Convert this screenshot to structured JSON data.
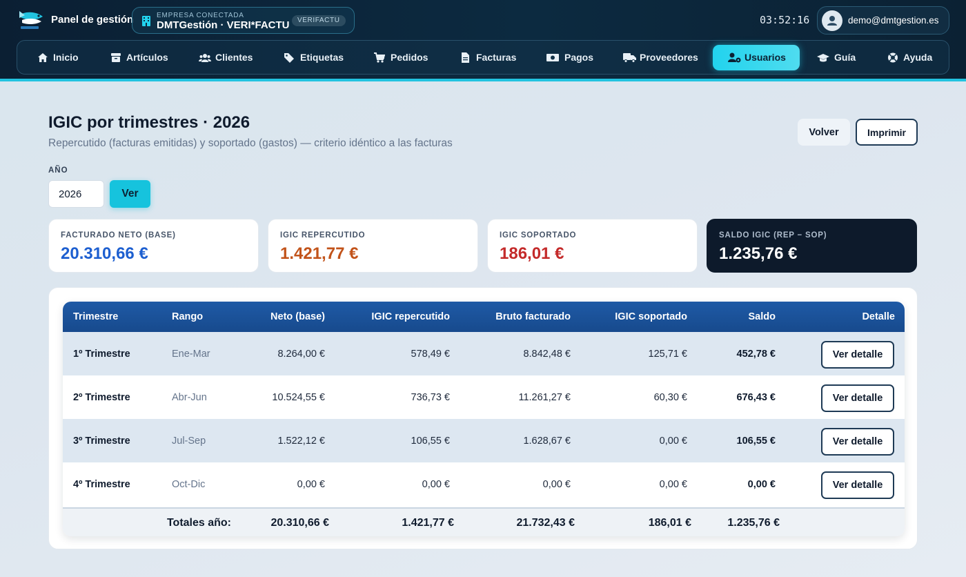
{
  "header": {
    "brand": "Panel de gestión",
    "company_eyebrow": "EMPRESA CONECTADA",
    "company_name": "DMTGestión · VERI*FACTU",
    "company_badge": "VERIFACTU",
    "clock": "03:52:16",
    "user_email": "demo@dmtgestion.es"
  },
  "nav": [
    {
      "label": "Inicio",
      "icon": "home-icon"
    },
    {
      "label": "Artículos",
      "icon": "box-icon"
    },
    {
      "label": "Clientes",
      "icon": "users-icon"
    },
    {
      "label": "Etiquetas",
      "icon": "tags-icon"
    },
    {
      "label": "Pedidos",
      "icon": "cart-icon"
    },
    {
      "label": "Facturas",
      "icon": "invoice-icon"
    },
    {
      "label": "Pagos",
      "icon": "money-icon"
    },
    {
      "label": "Proveedores",
      "icon": "truck-icon"
    },
    {
      "label": "Usuarios",
      "icon": "user-gear-icon",
      "active": true
    },
    {
      "label": "Guía",
      "icon": "graduation-cap-icon"
    },
    {
      "label": "Ayuda",
      "icon": "lifebuoy-icon"
    }
  ],
  "page": {
    "title": "IGIC por trimestres · 2026",
    "subtitle": "Repercutido (facturas emitidas) y soportado (gastos) — criterio idéntico a las facturas",
    "back_label": "Volver",
    "print_label": "Imprimir",
    "year_label": "AÑO",
    "year_value": "2026",
    "view_label": "Ver"
  },
  "kpis": [
    {
      "label": "FACTURADO NETO (BASE)",
      "value": "20.310,66 €",
      "color": "#1d5fd0"
    },
    {
      "label": "IGIC REPERCUTIDO",
      "value": "1.421,77 €",
      "color": "#c2531a"
    },
    {
      "label": "IGIC SOPORTADO",
      "value": "186,01 €",
      "color": "#c42a2a"
    },
    {
      "label": "SALDO IGIC (REP − SOP)",
      "value": "1.235,76 €",
      "color": "#ffffff"
    }
  ],
  "table": {
    "headers": {
      "trimestre": "Trimestre",
      "rango": "Rango",
      "neto": "Neto (base)",
      "repercutido": "IGIC repercutido",
      "bruto": "Bruto facturado",
      "soportado": "IGIC soportado",
      "saldo": "Saldo",
      "detalle": "Detalle"
    },
    "rows": [
      {
        "trimestre": "1º Trimestre",
        "rango": "Ene-Mar",
        "neto": "8.264,00 €",
        "repercutido": "578,49 €",
        "bruto": "8.842,48 €",
        "soportado": "125,71 €",
        "saldo": "452,78 €",
        "detalle": "Ver detalle"
      },
      {
        "trimestre": "2º Trimestre",
        "rango": "Abr-Jun",
        "neto": "10.524,55 €",
        "repercutido": "736,73 €",
        "bruto": "11.261,27 €",
        "soportado": "60,30 €",
        "saldo": "676,43 €",
        "detalle": "Ver detalle"
      },
      {
        "trimestre": "3º Trimestre",
        "rango": "Jul-Sep",
        "neto": "1.522,12 €",
        "repercutido": "106,55 €",
        "bruto": "1.628,67 €",
        "soportado": "0,00 €",
        "saldo": "106,55 €",
        "detalle": "Ver detalle"
      },
      {
        "trimestre": "4º Trimestre",
        "rango": "Oct-Dic",
        "neto": "0,00 €",
        "repercutido": "0,00 €",
        "bruto": "0,00 €",
        "soportado": "0,00 €",
        "saldo": "0,00 €",
        "detalle": "Ver detalle"
      }
    ],
    "totals": {
      "label": "Totales año:",
      "neto": "20.310,66 €",
      "repercutido": "1.421,77 €",
      "bruto": "21.732,43 €",
      "soportado": "186,01 €",
      "saldo": "1.235,76 €"
    }
  }
}
